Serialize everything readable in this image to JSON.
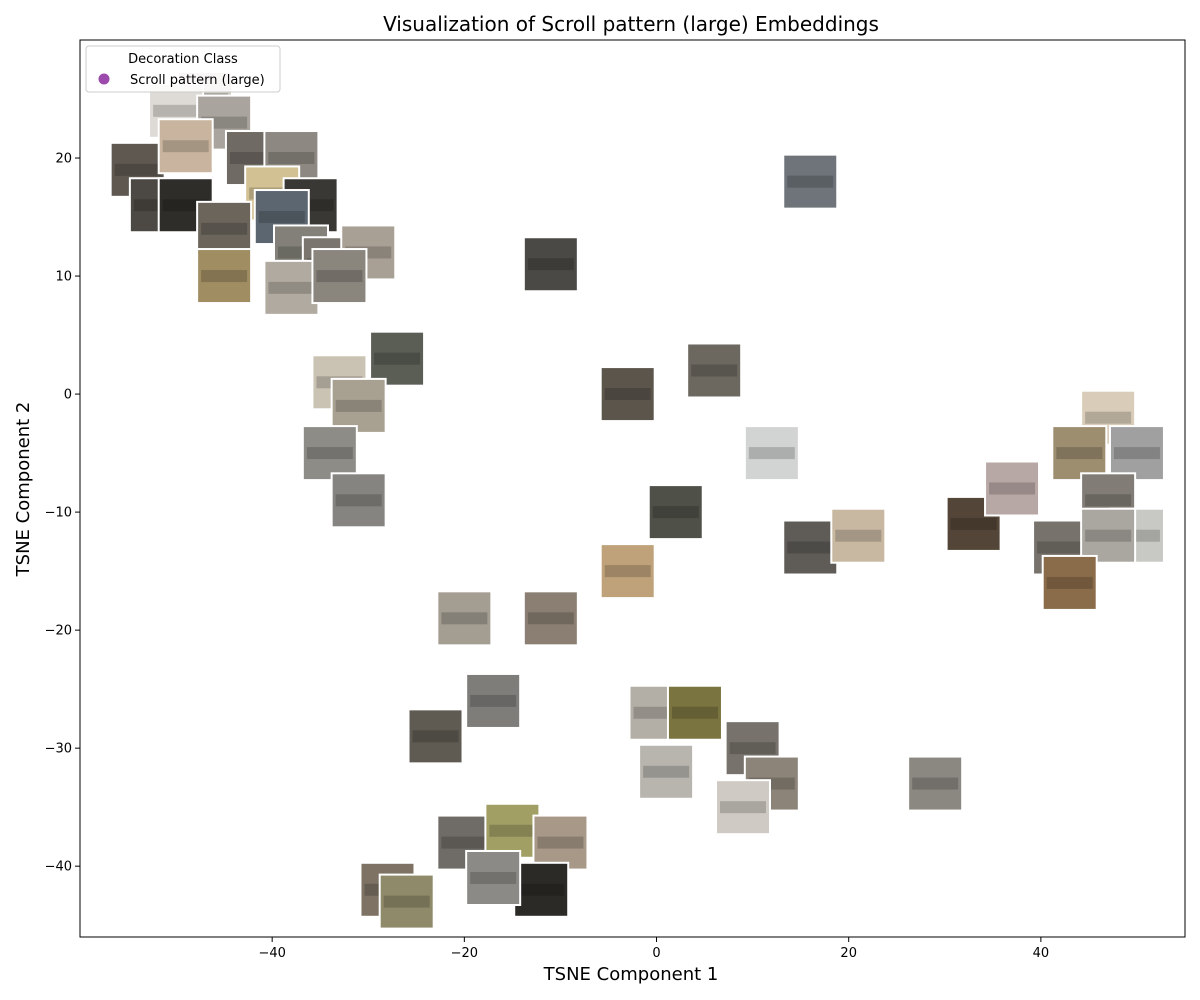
{
  "chart_data": {
    "type": "scatter",
    "title": "Visualization of Scroll pattern (large) Embeddings",
    "xlabel": "TSNE Component 1",
    "ylabel": "TSNE Component 2",
    "xlim": [
      -60,
      55
    ],
    "ylim": [
      -46,
      30
    ],
    "xticks": [
      -40,
      -20,
      0,
      20,
      40
    ],
    "yticks": [
      20,
      10,
      0,
      -10,
      -20,
      -30,
      -40
    ],
    "xtick_labels": [
      "−40",
      "−20",
      "0",
      "20",
      "40"
    ],
    "ytick_labels": [
      "20",
      "10",
      "0",
      "−10",
      "−20",
      "−30",
      "−40"
    ],
    "grid": false,
    "legend": {
      "title": "Decoration Class",
      "placement": "top-left",
      "entries": [
        {
          "label": "Scroll pattern (large)",
          "color": "#8b2b9e"
        }
      ]
    },
    "marker_style": "image-thumbnail",
    "series": [
      {
        "name": "Scroll pattern (large)",
        "color": "#8b2b9e",
        "points": [
          {
            "x": -47,
            "y": 25,
            "tone": "#cfcac2"
          },
          {
            "x": -50,
            "y": 24,
            "tone": "#dedbd6"
          },
          {
            "x": -45,
            "y": 23,
            "tone": "#a9a49d"
          },
          {
            "x": -54,
            "y": 19,
            "tone": "#5e5850"
          },
          {
            "x": -49,
            "y": 21,
            "tone": "#c9b59f"
          },
          {
            "x": -42,
            "y": 20,
            "tone": "#6f6a63"
          },
          {
            "x": -38,
            "y": 20,
            "tone": "#8d8881"
          },
          {
            "x": -40,
            "y": 17,
            "tone": "#d1c193"
          },
          {
            "x": -36,
            "y": 16,
            "tone": "#3a3834"
          },
          {
            "x": -52,
            "y": 16,
            "tone": "#4c4944"
          },
          {
            "x": -49,
            "y": 16,
            "tone": "#2f2d29"
          },
          {
            "x": -45,
            "y": 14,
            "tone": "#6b655c"
          },
          {
            "x": -39,
            "y": 15,
            "tone": "#5c6670"
          },
          {
            "x": -37,
            "y": 12,
            "tone": "#828078"
          },
          {
            "x": -34,
            "y": 11,
            "tone": "#7a756e"
          },
          {
            "x": -30,
            "y": 12,
            "tone": "#a9a095"
          },
          {
            "x": -45,
            "y": 10,
            "tone": "#a08d62"
          },
          {
            "x": -38,
            "y": 9,
            "tone": "#b0aaa0"
          },
          {
            "x": -33,
            "y": 10,
            "tone": "#8a857d"
          },
          {
            "x": -11,
            "y": 11,
            "tone": "#4b4945"
          },
          {
            "x": 16,
            "y": 18,
            "tone": "#6e7479"
          },
          {
            "x": -27,
            "y": 3,
            "tone": "#5a5e55"
          },
          {
            "x": -33,
            "y": 1,
            "tone": "#cac3b4"
          },
          {
            "x": -31,
            "y": -1,
            "tone": "#a8a192"
          },
          {
            "x": -34,
            "y": -5,
            "tone": "#8e8c87"
          },
          {
            "x": -31,
            "y": -9,
            "tone": "#868480"
          },
          {
            "x": -3,
            "y": 0,
            "tone": "#5b554c"
          },
          {
            "x": 6,
            "y": 2,
            "tone": "#6c6860"
          },
          {
            "x": 12,
            "y": -5,
            "tone": "#d2d3d3"
          },
          {
            "x": 2,
            "y": -10,
            "tone": "#4f5048"
          },
          {
            "x": -3,
            "y": -15,
            "tone": "#bfa27a"
          },
          {
            "x": 16,
            "y": -13,
            "tone": "#5f5c57"
          },
          {
            "x": 21,
            "y": -12,
            "tone": "#c8b8a2"
          },
          {
            "x": 33,
            "y": -11,
            "tone": "#534537"
          },
          {
            "x": 37,
            "y": -8,
            "tone": "#b8a8a5"
          },
          {
            "x": 47,
            "y": -2,
            "tone": "#d9cdb9"
          },
          {
            "x": 44,
            "y": -5,
            "tone": "#9c8e6f"
          },
          {
            "x": 50,
            "y": -5,
            "tone": "#a0a0a0"
          },
          {
            "x": 47,
            "y": -9,
            "tone": "#817c75"
          },
          {
            "x": 50,
            "y": -12,
            "tone": "#c8c8c4"
          },
          {
            "x": 42,
            "y": -13,
            "tone": "#77726b"
          },
          {
            "x": 47,
            "y": -12,
            "tone": "#aaa6a0"
          },
          {
            "x": 43,
            "y": -16,
            "tone": "#8a6c4a"
          },
          {
            "x": -20,
            "y": -19,
            "tone": "#a39d92"
          },
          {
            "x": -11,
            "y": -19,
            "tone": "#8a7f72"
          },
          {
            "x": -17,
            "y": -26,
            "tone": "#7e7d7a"
          },
          {
            "x": -23,
            "y": -29,
            "tone": "#5f5a52"
          },
          {
            "x": 0,
            "y": -27,
            "tone": "#b4afa6"
          },
          {
            "x": 4,
            "y": -27,
            "tone": "#7a7440"
          },
          {
            "x": 10,
            "y": -30,
            "tone": "#77736c"
          },
          {
            "x": 12,
            "y": -33,
            "tone": "#8c8478"
          },
          {
            "x": 1,
            "y": -32,
            "tone": "#b8b5ae"
          },
          {
            "x": 9,
            "y": -35,
            "tone": "#cfcac3"
          },
          {
            "x": 29,
            "y": -33,
            "tone": "#8b8882"
          },
          {
            "x": -20,
            "y": -38,
            "tone": "#6f6c67"
          },
          {
            "x": -15,
            "y": -37,
            "tone": "#a19f64"
          },
          {
            "x": -10,
            "y": -38,
            "tone": "#a79888"
          },
          {
            "x": -12,
            "y": -42,
            "tone": "#2b2a27"
          },
          {
            "x": -17,
            "y": -41,
            "tone": "#8c8a86"
          },
          {
            "x": -28,
            "y": -42,
            "tone": "#7d7264"
          },
          {
            "x": -26,
            "y": -43,
            "tone": "#8f8a6a"
          }
        ]
      }
    ]
  }
}
